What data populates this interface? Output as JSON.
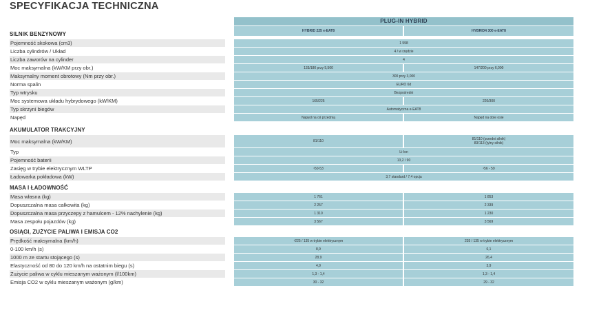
{
  "title": "SPECYFIKACJA TECHNICZNA",
  "header": {
    "group": "PLUG-IN HYBRID",
    "col1": "HYBRID 225 e-EAT8",
    "col2": "HYBRID4 300 e-EAT8"
  },
  "sections": [
    {
      "name": "SILNIK BENZYNOWY",
      "rows": [
        {
          "label": "Pojemność skokowa (cm3)",
          "full": "1 598"
        },
        {
          "label": "Liczba cylindrów / Układ",
          "full": "4 / w rzędzie"
        },
        {
          "label": "Liczba zaworów na cylinder",
          "full": "4"
        },
        {
          "label": "Moc maksymalna (kW/KM przy obr.)",
          "v1": "133/180 przy 5,500",
          "v2": "147/200 przy 6,000"
        },
        {
          "label": "Maksymalny moment obrotowy (Nm przy obr.)",
          "full": "300 przy 3,000"
        },
        {
          "label": "Norma spalin",
          "full": "EURO 6d"
        },
        {
          "label": "Typ wtrysku",
          "full": "Bezpośredni"
        },
        {
          "label": "Moc systemowa układu hybrydowego (kW/KM)",
          "v1": "165/225",
          "v2": "220/300"
        },
        {
          "label": "Typ skrzyni biegów",
          "full": "Automatyczna e-EAT8"
        },
        {
          "label": "Napęd",
          "v1": "Napęd na oś przednią",
          "v2": "Napęd na obie osie"
        }
      ]
    },
    {
      "name": "AKUMULATOR TRAKCYJNY",
      "rows": [
        {
          "label": "Moc maksymalna (kW/KM)",
          "v1": "81/110",
          "v2a": "81/110 (przedni silnik)",
          "v2b": "83/113 (tylny silnik)"
        },
        {
          "label": "Typ",
          "full": "Li-Ion"
        },
        {
          "label": "Pojemność baterii",
          "full": "13,2 / 90"
        },
        {
          "label": "Zasięg w trybie elektrycznym WLTP",
          "v1": "¹50-53",
          "v2": "¹56 - 59"
        },
        {
          "label": "Ładowarka pokładowa (kW)",
          "full": "3,7 standard / 7,4 opcja"
        }
      ]
    },
    {
      "name": "MASA I ŁADOWNOŚĆ",
      "rows": [
        {
          "label": "Masa własna (kg)",
          "v1": "1 761",
          "v2": "1 853"
        },
        {
          "label": "Dopuszczalna masa całkowita (kg)",
          "v1": "2 257",
          "v2": "2 339"
        },
        {
          "label": "Dopuszczalna masa przyczepy z hamulcem - 12% nachylenie (kg)",
          "v1": "1 310",
          "v2": "1 230"
        },
        {
          "label": "Masa zespołu pojazdów (kg)",
          "v1": "3 567",
          "v2": "3 569"
        }
      ]
    },
    {
      "name": "OSIĄGI, ZUŻYCIE PALIWA I EMISJA CO2",
      "rows": [
        {
          "label": "Prędkość maksymalna (km/h)",
          "v1": "¹225 / 135 w trybie elektrycznym",
          "v2": "235 / 135 w trybie elektrycznym"
        },
        {
          "label": "0-100 km/h (s)",
          "v1": "8,9",
          "v2": "6,1"
        },
        {
          "label": "1000 m ze startu stojącego (s)",
          "v1": "28,9",
          "v2": "26,4"
        },
        {
          "label": "Elastyczność od 80 do 120 km/h na ostatnim biegu (s)",
          "v1": "4,9",
          "v2": "3,9"
        },
        {
          "label": "Zużycie paliwa w cyklu mieszanym ważonym (l/100km)",
          "v1": "1,3 - 1,4",
          "v2": "1,3 - 1,4"
        },
        {
          "label": "Emisja CO2 w cyklu mieszanym ważonym (g/km)",
          "v1": "30 - 32",
          "v2": "29 - 32"
        }
      ]
    }
  ]
}
